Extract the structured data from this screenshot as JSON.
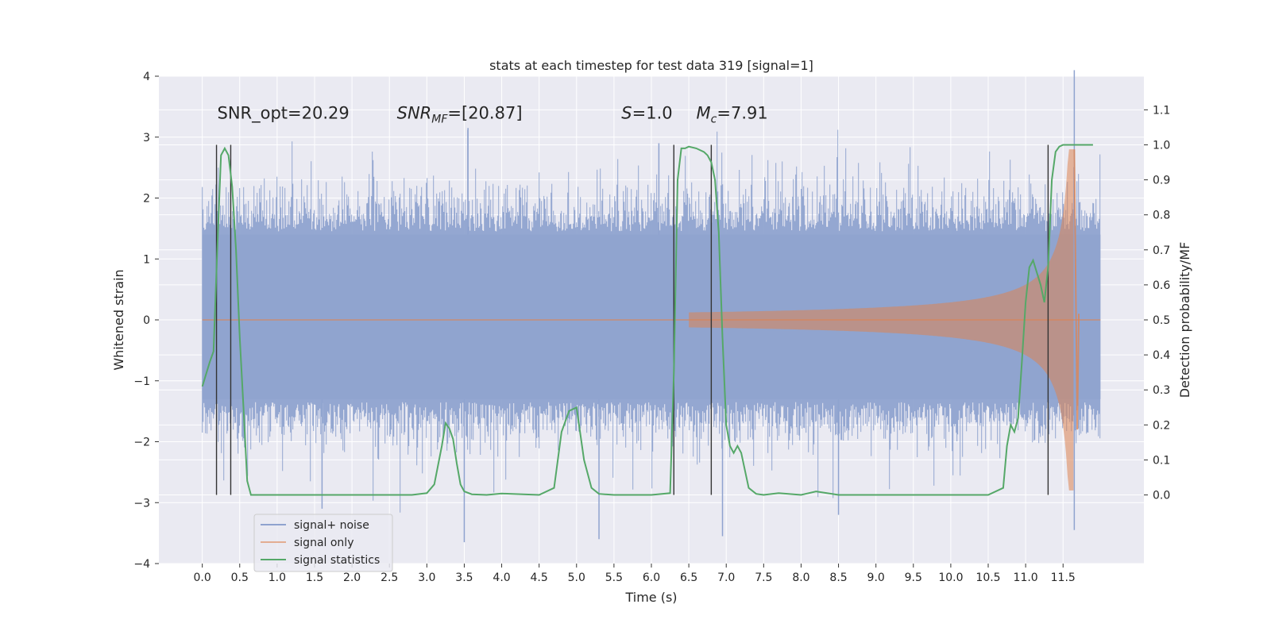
{
  "chart_data": {
    "type": "line",
    "title": "stats at each timestep for test data 319 [signal=1]",
    "xlabel": "Time (s)",
    "ylabel_left": "Whitened strain",
    "ylabel_right": "Detection probability/MF",
    "xlim": [
      -0.58,
      12.58
    ],
    "ylim_left": [
      -4.0,
      4.0
    ],
    "ylim_right": [
      -0.196,
      1.196
    ],
    "grid": true,
    "x_ticks": [
      0.0,
      0.5,
      1.0,
      1.5,
      2.0,
      2.5,
      3.0,
      3.5,
      4.0,
      4.5,
      5.0,
      5.5,
      6.0,
      6.5,
      7.0,
      7.5,
      8.0,
      8.5,
      9.0,
      9.5,
      10.0,
      10.5,
      11.0,
      11.5
    ],
    "x_tick_labels": [
      "0.0",
      "0.5",
      "1.0",
      "1.5",
      "2.0",
      "2.5",
      "3.0",
      "3.5",
      "4.0",
      "4.5",
      "5.0",
      "5.5",
      "6.0",
      "6.5",
      "7.0",
      "7.5",
      "8.0",
      "8.5",
      "9.0",
      "9.5",
      "10.0",
      "10.5",
      "11.0",
      "11.5"
    ],
    "y_left_ticks": [
      -4,
      -3,
      -2,
      -1,
      0,
      1,
      2,
      3,
      4
    ],
    "y_left_tick_labels": [
      "−4",
      "−3",
      "−2",
      "−1",
      "0",
      "1",
      "2",
      "3",
      "4"
    ],
    "y_right_ticks": [
      0.0,
      0.1,
      0.2,
      0.3,
      0.4,
      0.5,
      0.6,
      0.7,
      0.8,
      0.9,
      1.0,
      1.1
    ],
    "y_right_tick_labels": [
      "0.0",
      "0.1",
      "0.2",
      "0.3",
      "0.4",
      "0.5",
      "0.6",
      "0.7",
      "0.8",
      "0.9",
      "1.0",
      "1.1"
    ],
    "annotations": [
      {
        "text": "SNR_opt=20.29",
        "x": 0.2,
        "y": 3.3
      },
      {
        "text": "SNR_MF=[20.87]",
        "x": 2.6,
        "y": 3.3
      },
      {
        "text": "S=1.0",
        "x": 5.6,
        "y": 3.3
      },
      {
        "text": "M_c=7.91",
        "x": 6.6,
        "y": 3.3
      }
    ],
    "vertical_markers": [
      0.19,
      0.38,
      6.3,
      6.8,
      11.3
    ],
    "series": [
      {
        "name": "signal+ noise",
        "color": "#8fa3cf",
        "axis": "left",
        "x_range": [
          0.0,
          12.0
        ],
        "envelope": {
          "max_typical": 1.7,
          "min_typical": -1.5,
          "peak_max": 4.1,
          "peak_min": -3.65
        }
      },
      {
        "name": "signal only",
        "color": "#dd8452",
        "axis": "left",
        "x_range": [
          0.0,
          12.0
        ],
        "chirp_merger_time": 11.65,
        "envelope_peak": 2.8
      },
      {
        "name": "signal statistics",
        "color": "#55a868",
        "axis": "right",
        "x": [
          0.0,
          0.1,
          0.15,
          0.2,
          0.25,
          0.3,
          0.35,
          0.4,
          0.45,
          0.5,
          0.55,
          0.6,
          0.65,
          1.0,
          2.0,
          2.8,
          3.0,
          3.1,
          3.2,
          3.25,
          3.3,
          3.35,
          3.4,
          3.45,
          3.5,
          3.6,
          3.8,
          4.0,
          4.5,
          4.7,
          4.8,
          4.9,
          5.0,
          5.1,
          5.2,
          5.3,
          5.5,
          6.0,
          6.25,
          6.3,
          6.35,
          6.4,
          6.45,
          6.5,
          6.6,
          6.7,
          6.75,
          6.8,
          6.85,
          6.9,
          6.95,
          7.0,
          7.05,
          7.1,
          7.15,
          7.2,
          7.25,
          7.3,
          7.4,
          7.5,
          7.7,
          8.0,
          8.2,
          8.5,
          9.0,
          10.0,
          10.5,
          10.7,
          10.75,
          10.8,
          10.85,
          10.9,
          10.95,
          11.0,
          11.05,
          11.1,
          11.2,
          11.25,
          11.3,
          11.35,
          11.4,
          11.45,
          11.5,
          11.6,
          11.9
        ],
        "y": [
          0.31,
          0.38,
          0.41,
          0.7,
          0.97,
          0.99,
          0.97,
          0.88,
          0.7,
          0.45,
          0.25,
          0.04,
          0.0,
          0.0,
          0.0,
          0.0,
          0.005,
          0.03,
          0.14,
          0.205,
          0.19,
          0.16,
          0.09,
          0.03,
          0.01,
          0.002,
          0.0,
          0.004,
          0.0,
          0.02,
          0.18,
          0.24,
          0.25,
          0.1,
          0.02,
          0.003,
          0.0,
          0.0,
          0.005,
          0.35,
          0.9,
          0.99,
          0.99,
          0.995,
          0.99,
          0.98,
          0.97,
          0.95,
          0.9,
          0.75,
          0.45,
          0.2,
          0.14,
          0.12,
          0.14,
          0.12,
          0.07,
          0.02,
          0.003,
          0.0,
          0.005,
          0.0,
          0.01,
          0.0,
          0.0,
          0.0,
          0.0,
          0.02,
          0.14,
          0.2,
          0.18,
          0.22,
          0.38,
          0.55,
          0.65,
          0.67,
          0.6,
          0.55,
          0.65,
          0.9,
          0.98,
          0.995,
          1.0,
          1.0,
          1.0
        ]
      }
    ],
    "legend_position": "lower-left",
    "colors": {
      "plot_background": "#eaeaf2",
      "grid": "#ffffff",
      "marker_line": "#333333"
    }
  }
}
